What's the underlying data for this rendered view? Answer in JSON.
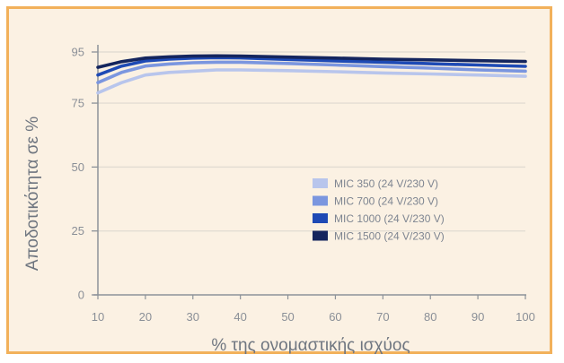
{
  "chart_data": {
    "type": "line",
    "xlabel": "% της ονομαστικής ισχύος",
    "ylabel": "Αποδοτικότητα σε %",
    "x_ticks": [
      "10",
      "20",
      "30",
      "40",
      "50",
      "60",
      "70",
      "80",
      "90",
      "100"
    ],
    "y_ticks": [
      "0",
      "25",
      "50",
      "75",
      "95"
    ],
    "xlim": [
      10,
      100
    ],
    "ylim": [
      0,
      100
    ],
    "grid": true,
    "legend_position": "center-right",
    "background": "#fbf1e3",
    "border_color": "#f2b15b",
    "x": [
      10,
      15,
      20,
      25,
      30,
      35,
      40,
      50,
      60,
      70,
      80,
      90,
      100
    ],
    "series": [
      {
        "name": "MIC 350 (24 V/230 V)",
        "color": "#b8c5ec",
        "values": [
          79,
          83,
          86,
          87,
          87.5,
          88,
          88,
          87.7,
          87.3,
          86.8,
          86.4,
          86,
          85.5
        ]
      },
      {
        "name": "MIC 700 (24 V/230 V)",
        "color": "#7b96df",
        "values": [
          83,
          87,
          89.5,
          90.3,
          90.8,
          91,
          91,
          90.5,
          89.9,
          89.3,
          88.7,
          88,
          87.5
        ]
      },
      {
        "name": "MIC 1000 (24 V/230 V)",
        "color": "#1e4ab5",
        "values": [
          86,
          89.5,
          91.5,
          92.2,
          92.6,
          92.8,
          92.7,
          92.1,
          91.5,
          91,
          90.4,
          89.9,
          89.4
        ]
      },
      {
        "name": "MIC 1500 (24 V/230 V)",
        "color": "#14255e",
        "values": [
          89,
          91.2,
          92.6,
          93.1,
          93.4,
          93.5,
          93.4,
          93,
          92.6,
          92.2,
          91.9,
          91.6,
          91.3
        ]
      }
    ]
  }
}
